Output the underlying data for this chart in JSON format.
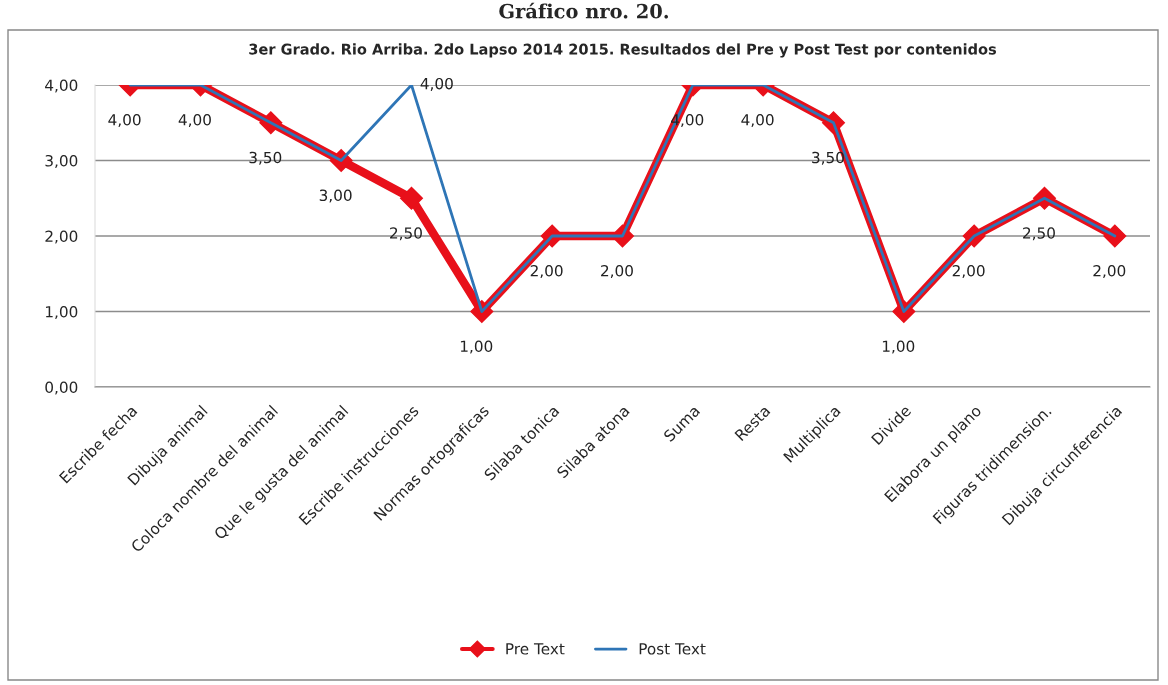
{
  "chart_data": {
    "type": "line",
    "title": "3er Grado. Rio Arriba. 2do Lapso 2014 2015. Resultados del Pre y Post Test por contenidos",
    "annotations": [
      "Gráfico nro. 20."
    ],
    "categories": [
      "Escribe fecha",
      "Dibuja animal",
      "Coloca nombre del animal",
      "Que le gusta del animal",
      "Escribe instrucciones",
      "Normas ortograficas",
      "Silaba tonica",
      "Silaba atona",
      "Suma",
      "Resta",
      "Multiplica",
      "Divide",
      "Elabora un plano",
      "Figuras tridimension.",
      "Dibuja circunferencia"
    ],
    "series": [
      {
        "name": "Pre Text",
        "color": "#e8101a",
        "marker": "diamond",
        "values": [
          4,
          4,
          3.5,
          3,
          2.5,
          1,
          2,
          2,
          4,
          4,
          3.5,
          1,
          2,
          2.5,
          2
        ],
        "value_labels": [
          "4,00",
          "4,00",
          "3,50",
          "3,00",
          "2,50",
          "1,00",
          "2,00",
          "2,00",
          "4,00",
          "4,00",
          "3,50",
          "1,00",
          "2,00",
          "2,50",
          "2,00"
        ]
      },
      {
        "name": "Post Text",
        "color": "#2e75b6",
        "marker": "none",
        "values": [
          4,
          4,
          3.5,
          3,
          4,
          1,
          2,
          2,
          4,
          4,
          3.5,
          1,
          2,
          2.5,
          2
        ],
        "value_labels": [
          null,
          null,
          null,
          null,
          "4,00",
          null,
          null,
          null,
          null,
          null,
          null,
          null,
          null,
          null,
          null
        ]
      }
    ],
    "ylim": [
      0,
      4
    ],
    "yticks": [
      {
        "value": 0,
        "label": "0,00"
      },
      {
        "value": 1,
        "label": "1,00"
      },
      {
        "value": 2,
        "label": "2,00"
      },
      {
        "value": 3,
        "label": "3,00"
      },
      {
        "value": 4,
        "label": "4,00"
      }
    ],
    "grid": "y",
    "legend": "bottom",
    "line_style": "solid"
  }
}
